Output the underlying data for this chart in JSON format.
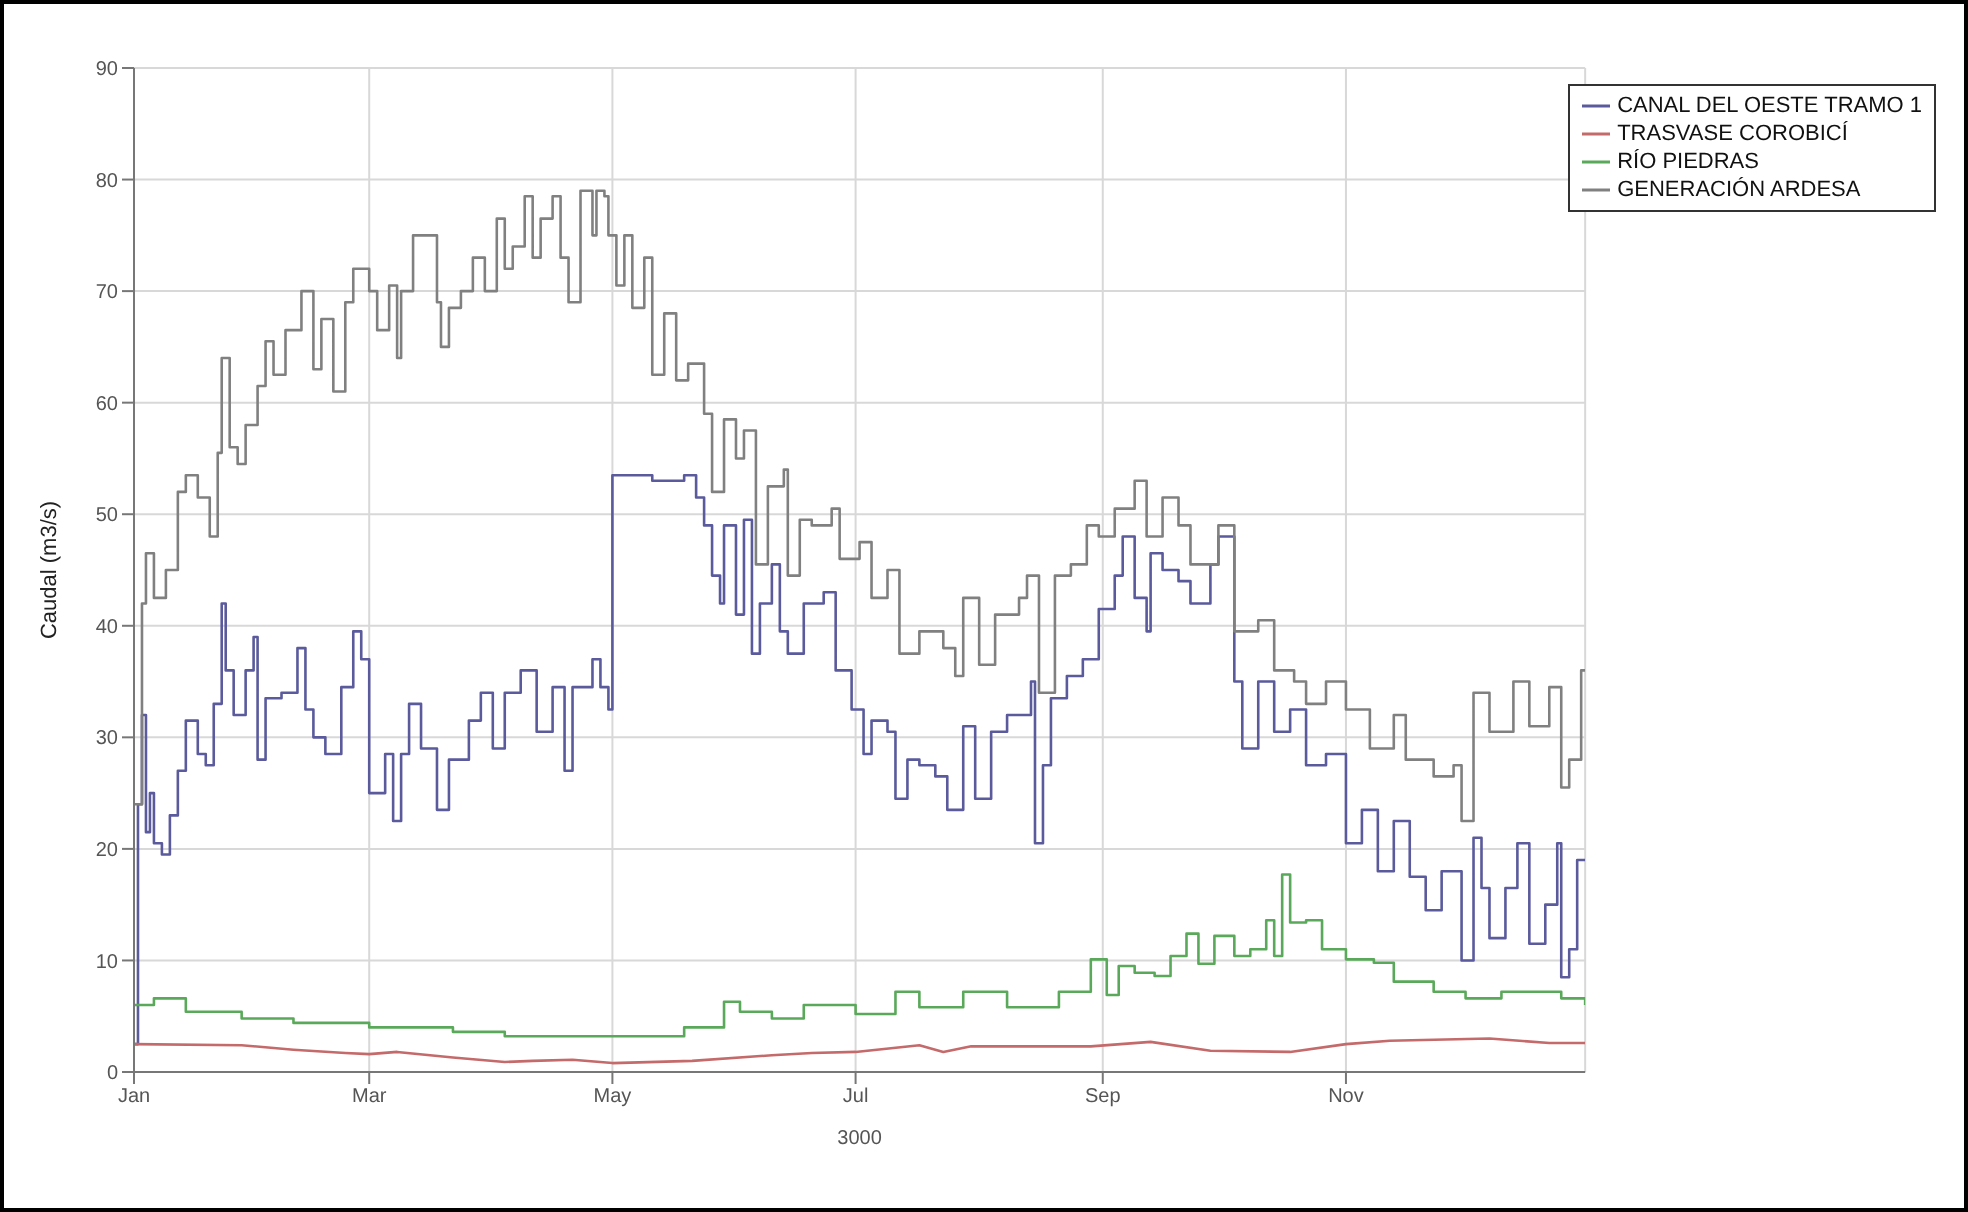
{
  "chart_data": {
    "type": "step",
    "xlabel": "3000",
    "ylabel": "Caudal (m3/s)",
    "xlim": [
      "3000-01-01",
      "3000-12-31"
    ],
    "ylim": [
      0,
      90
    ],
    "xticks": [
      {
        "value": "3000-01-01",
        "label": "Jan"
      },
      {
        "value": "3000-03-01",
        "label": "Mar"
      },
      {
        "value": "3000-05-01",
        "label": "May"
      },
      {
        "value": "3000-07-01",
        "label": "Jul"
      },
      {
        "value": "3000-09-01",
        "label": "Sep"
      },
      {
        "value": "3000-11-01",
        "label": "Nov"
      }
    ],
    "yticks": [
      0,
      10,
      20,
      30,
      40,
      50,
      60,
      70,
      80,
      90
    ],
    "grid": true,
    "legend": "top right",
    "marker": "none",
    "line_style": "solid",
    "series": [
      {
        "name": "CANAL DEL OESTE TRAMO 1",
        "color": "#5a5a9c",
        "x": [
          "3000-01-01",
          "3000-01-02",
          "3000-01-03",
          "3000-01-04",
          "3000-01-05",
          "3000-01-06",
          "3000-01-08",
          "3000-01-10",
          "3000-01-12",
          "3000-01-14",
          "3000-01-17",
          "3000-01-19",
          "3000-01-21",
          "3000-01-23",
          "3000-01-24",
          "3000-01-26",
          "3000-01-29",
          "3000-01-31",
          "3000-02-01",
          "3000-02-03",
          "3000-02-07",
          "3000-02-11",
          "3000-02-13",
          "3000-02-15",
          "3000-02-18",
          "3000-02-22",
          "3000-02-25",
          "3000-02-27",
          "3000-03-01",
          "3000-03-05",
          "3000-03-07",
          "3000-03-09",
          "3000-03-11",
          "3000-03-14",
          "3000-03-18",
          "3000-03-21",
          "3000-03-26",
          "3000-03-29",
          "3000-04-01",
          "3000-04-04",
          "3000-04-08",
          "3000-04-12",
          "3000-04-16",
          "3000-04-19",
          "3000-04-21",
          "3000-04-26",
          "3000-04-28",
          "3000-04-30",
          "3000-05-01",
          "3000-05-11",
          "3000-05-19",
          "3000-05-22",
          "3000-05-24",
          "3000-05-26",
          "3000-05-28",
          "3000-05-29",
          "3000-06-01",
          "3000-06-03",
          "3000-06-05",
          "3000-06-07",
          "3000-06-10",
          "3000-06-12",
          "3000-06-14",
          "3000-06-18",
          "3000-06-23",
          "3000-06-26",
          "3000-06-30",
          "3000-07-03",
          "3000-07-05",
          "3000-07-09",
          "3000-07-11",
          "3000-07-14",
          "3000-07-17",
          "3000-07-21",
          "3000-07-24",
          "3000-07-28",
          "3000-07-31",
          "3000-08-04",
          "3000-08-08",
          "3000-08-12",
          "3000-08-14",
          "3000-08-15",
          "3000-08-17",
          "3000-08-19",
          "3000-08-23",
          "3000-08-27",
          "3000-08-31",
          "3000-09-04",
          "3000-09-06",
          "3000-09-09",
          "3000-09-12",
          "3000-09-13",
          "3000-09-16",
          "3000-09-20",
          "3000-09-23",
          "3000-09-28",
          "3000-09-30",
          "3000-10-04",
          "3000-10-06",
          "3000-10-10",
          "3000-10-14",
          "3000-10-18",
          "3000-10-22",
          "3000-10-27",
          "3000-11-01",
          "3000-11-05",
          "3000-11-09",
          "3000-11-13",
          "3000-11-17",
          "3000-11-21",
          "3000-11-25",
          "3000-11-30",
          "3000-12-03",
          "3000-12-05",
          "3000-12-07",
          "3000-12-11",
          "3000-12-14",
          "3000-12-17",
          "3000-12-21",
          "3000-12-24",
          "3000-12-25",
          "3000-12-27",
          "3000-12-29",
          "3000-12-31"
        ],
        "values": [
          2.5,
          24,
          32,
          21.5,
          25,
          20.5,
          19.5,
          23,
          27,
          31.5,
          28.5,
          27.5,
          33,
          42,
          36,
          32,
          36,
          39,
          28,
          33.5,
          34,
          38,
          32.5,
          30,
          28.5,
          34.5,
          39.5,
          37,
          25,
          28.5,
          22.5,
          28.5,
          33,
          29,
          23.5,
          28,
          31.5,
          34,
          29,
          34,
          36,
          30.5,
          34.5,
          27,
          34.5,
          37,
          34.5,
          32.5,
          53.5,
          53,
          53.5,
          51.5,
          49,
          44.5,
          42,
          49,
          41,
          49.5,
          37.5,
          42,
          45.5,
          39.5,
          37.5,
          42,
          43,
          36,
          32.5,
          28.5,
          31.5,
          30.5,
          24.5,
          28,
          27.5,
          26.5,
          23.5,
          31,
          24.5,
          30.5,
          32,
          32,
          35,
          20.5,
          27.5,
          33.5,
          35.5,
          37,
          41.5,
          44.5,
          48,
          42.5,
          39.5,
          46.5,
          45,
          44,
          42,
          45.5,
          48,
          35,
          29,
          35,
          30.5,
          32.5,
          27.5,
          28.5,
          20.5,
          23.5,
          18,
          22.5,
          17.5,
          14.5,
          18,
          10,
          21,
          16.5,
          12,
          16.5,
          20.5,
          11.5,
          15,
          20.5,
          8.5,
          11,
          19,
          19
        ]
      },
      {
        "name": "TRASVASE COROBICÍ",
        "color": "#c46a6a",
        "type": "line",
        "x": [
          "3000-01-01",
          "3000-01-28",
          "3000-02-10",
          "3000-02-23",
          "3000-03-01",
          "3000-03-08",
          "3000-03-22",
          "3000-04-04",
          "3000-04-11",
          "3000-04-21",
          "3000-05-01",
          "3000-05-21",
          "3000-06-10",
          "3000-06-20",
          "3000-07-01",
          "3000-07-17",
          "3000-07-23",
          "3000-07-30",
          "3000-08-29",
          "3000-09-13",
          "3000-09-28",
          "3000-10-18",
          "3000-11-01",
          "3000-11-12",
          "3000-12-07",
          "3000-12-22",
          "3000-12-31"
        ],
        "values": [
          2.5,
          2.4,
          2,
          1.7,
          1.6,
          1.8,
          1.3,
          0.9,
          1,
          1.1,
          0.8,
          1,
          1.5,
          1.7,
          1.8,
          2.4,
          1.8,
          2.3,
          2.3,
          2.7,
          1.9,
          1.8,
          2.5,
          2.8,
          3,
          2.6,
          2.6
        ]
      },
      {
        "name": "RÍO PIEDRAS",
        "color": "#5aa85a",
        "x": [
          "3000-01-01",
          "3000-01-06",
          "3000-01-14",
          "3000-01-28",
          "3000-02-10",
          "3000-03-01",
          "3000-03-22",
          "3000-04-04",
          "3000-05-01",
          "3000-05-08",
          "3000-05-19",
          "3000-05-29",
          "3000-06-02",
          "3000-06-10",
          "3000-06-18",
          "3000-06-26",
          "3000-07-01",
          "3000-07-11",
          "3000-07-17",
          "3000-07-28",
          "3000-08-08",
          "3000-08-16",
          "3000-08-21",
          "3000-08-29",
          "3000-09-02",
          "3000-09-05",
          "3000-09-09",
          "3000-09-14",
          "3000-09-18",
          "3000-09-22",
          "3000-09-25",
          "3000-09-29",
          "3000-10-04",
          "3000-10-08",
          "3000-10-12",
          "3000-10-14",
          "3000-10-16",
          "3000-10-18",
          "3000-10-22",
          "3000-10-26",
          "3000-11-01",
          "3000-11-08",
          "3000-11-13",
          "3000-11-23",
          "3000-12-01",
          "3000-12-10",
          "3000-12-21",
          "3000-12-25",
          "3000-12-31"
        ],
        "values": [
          6,
          6.6,
          5.4,
          4.8,
          4.4,
          4,
          3.6,
          3.2,
          3.2,
          3.2,
          4,
          6.3,
          5.4,
          4.8,
          6,
          6,
          5.2,
          7.2,
          5.8,
          7.2,
          5.8,
          5.8,
          7.2,
          10.1,
          6.9,
          9.5,
          8.9,
          8.6,
          10.4,
          12.4,
          9.7,
          12.2,
          10.4,
          11,
          13.6,
          10.4,
          17.7,
          13.4,
          13.6,
          11,
          10.1,
          9.8,
          8.1,
          7.2,
          6.6,
          7.2,
          7.2,
          6.6,
          6
        ]
      },
      {
        "name": "GENERACIÓN ARDESA",
        "color": "#808080",
        "x": [
          "3000-01-01",
          "3000-01-03",
          "3000-01-04",
          "3000-01-06",
          "3000-01-09",
          "3000-01-12",
          "3000-01-14",
          "3000-01-17",
          "3000-01-20",
          "3000-01-22",
          "3000-01-23",
          "3000-01-25",
          "3000-01-27",
          "3000-01-29",
          "3000-02-01",
          "3000-02-03",
          "3000-02-05",
          "3000-02-08",
          "3000-02-12",
          "3000-02-15",
          "3000-02-17",
          "3000-02-20",
          "3000-02-23",
          "3000-02-25",
          "3000-03-01",
          "3000-03-03",
          "3000-03-06",
          "3000-03-08",
          "3000-03-09",
          "3000-03-12",
          "3000-03-16",
          "3000-03-18",
          "3000-03-19",
          "3000-03-21",
          "3000-03-24",
          "3000-03-27",
          "3000-03-30",
          "3000-04-02",
          "3000-04-04",
          "3000-04-06",
          "3000-04-09",
          "3000-04-11",
          "3000-04-13",
          "3000-04-16",
          "3000-04-18",
          "3000-04-20",
          "3000-04-23",
          "3000-04-26",
          "3000-04-27",
          "3000-04-29",
          "3000-04-30",
          "3000-05-02",
          "3000-05-04",
          "3000-05-06",
          "3000-05-09",
          "3000-05-11",
          "3000-05-14",
          "3000-05-17",
          "3000-05-20",
          "3000-05-24",
          "3000-05-26",
          "3000-05-29",
          "3000-06-01",
          "3000-06-03",
          "3000-06-06",
          "3000-06-09",
          "3000-06-13",
          "3000-06-14",
          "3000-06-17",
          "3000-06-20",
          "3000-06-25",
          "3000-06-27",
          "3000-07-02",
          "3000-07-05",
          "3000-07-09",
          "3000-07-12",
          "3000-07-17",
          "3000-07-23",
          "3000-07-26",
          "3000-07-28",
          "3000-08-01",
          "3000-08-05",
          "3000-08-11",
          "3000-08-13",
          "3000-08-16",
          "3000-08-20",
          "3000-08-24",
          "3000-08-28",
          "3000-08-31",
          "3000-09-04",
          "3000-09-09",
          "3000-09-12",
          "3000-09-16",
          "3000-09-20",
          "3000-09-23",
          "3000-09-30",
          "3000-10-04",
          "3000-10-10",
          "3000-10-14",
          "3000-10-19",
          "3000-10-22",
          "3000-10-27",
          "3000-11-01",
          "3000-11-07",
          "3000-11-13",
          "3000-11-16",
          "3000-11-23",
          "3000-11-28",
          "3000-11-30",
          "3000-12-03",
          "3000-12-07",
          "3000-12-13",
          "3000-12-17",
          "3000-12-22",
          "3000-12-25",
          "3000-12-27",
          "3000-12-30",
          "3000-12-31"
        ],
        "values": [
          24,
          42,
          46.5,
          42.5,
          45,
          52,
          53.5,
          51.5,
          48,
          55.5,
          64,
          56,
          54.5,
          58,
          61.5,
          65.5,
          62.5,
          66.5,
          70,
          63,
          67.5,
          61,
          69,
          72,
          70,
          66.5,
          70.5,
          64,
          70,
          75,
          75,
          69,
          65,
          68.5,
          70,
          73,
          70,
          76.5,
          72,
          74,
          78.5,
          73,
          76.5,
          78.5,
          73,
          69,
          79,
          75,
          79,
          78.5,
          75,
          70.5,
          75,
          68.5,
          73,
          62.5,
          68,
          62,
          63.5,
          59,
          52,
          58.5,
          55,
          57.5,
          45.5,
          52.5,
          54,
          44.5,
          49.5,
          49,
          50.5,
          46,
          47.5,
          42.5,
          45,
          37.5,
          39.5,
          38,
          35.5,
          42.5,
          36.5,
          41,
          42.5,
          44.5,
          34,
          44.5,
          45.5,
          49,
          48,
          50.5,
          53,
          48,
          51.5,
          49,
          45.5,
          49,
          39.5,
          40.5,
          36,
          35,
          33,
          35,
          32.5,
          29,
          32,
          28,
          26.5,
          27.5,
          22.5,
          34,
          30.5,
          35,
          31,
          34.5,
          25.5,
          28,
          36,
          36
        ]
      }
    ]
  }
}
